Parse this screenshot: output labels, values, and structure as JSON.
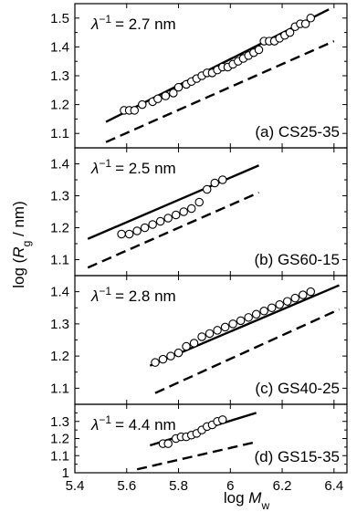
{
  "chart_data": {
    "type": "scatter",
    "layout": "four vertically stacked panels sharing the x axis",
    "xlabel": {
      "main": "log ",
      "var": "M",
      "sub": "w"
    },
    "ylabel": {
      "pre": "log (",
      "var": "R",
      "sub": "g",
      "post": " / nm)"
    },
    "xlim": [
      5.4,
      6.45
    ],
    "xticks": [
      5.4,
      5.6,
      5.8,
      6,
      6.2,
      6.4
    ],
    "xtick_labels": [
      "5.4",
      "5.6",
      "5.8",
      "6",
      "6.2",
      "6.4"
    ],
    "panels": [
      {
        "name": "(a) CS25-35",
        "lambda_label": "= 2.7 nm",
        "ylim": [
          1.05,
          1.55
        ],
        "yticks": [
          1.1,
          1.2,
          1.3,
          1.4,
          1.5
        ],
        "ytick_labels": [
          "1.1",
          "1.2",
          "1.3",
          "1.4",
          "1.5"
        ],
        "points": {
          "x": [
            5.59,
            5.61,
            5.63,
            5.66,
            5.7,
            5.72,
            5.75,
            5.78,
            5.8,
            5.83,
            5.85,
            5.87,
            5.89,
            5.91,
            5.93,
            5.95,
            5.97,
            5.99,
            6.01,
            6.03,
            6.05,
            6.07,
            6.09,
            6.11,
            6.13,
            6.15,
            6.17,
            6.19,
            6.21,
            6.23,
            6.25,
            6.27,
            6.29,
            6.31
          ],
          "y": [
            1.18,
            1.18,
            1.18,
            1.2,
            1.21,
            1.22,
            1.23,
            1.24,
            1.26,
            1.27,
            1.28,
            1.29,
            1.3,
            1.31,
            1.31,
            1.32,
            1.33,
            1.33,
            1.34,
            1.35,
            1.36,
            1.37,
            1.38,
            1.39,
            1.42,
            1.42,
            1.42,
            1.43,
            1.44,
            1.45,
            1.47,
            1.48,
            1.48,
            1.5
          ]
        },
        "fit_line": {
          "x": [
            5.52,
            6.38
          ],
          "y": [
            1.14,
            1.53
          ]
        },
        "reference_line": {
          "x": [
            5.52,
            6.4
          ],
          "y": [
            1.07,
            1.42
          ]
        }
      },
      {
        "name": "(b) GS60-15",
        "lambda_label": "= 2.5 nm",
        "ylim": [
          1.05,
          1.45
        ],
        "yticks": [
          1.1,
          1.2,
          1.3,
          1.4
        ],
        "ytick_labels": [
          "1.1",
          "1.2",
          "1.3",
          "1.4"
        ],
        "points": {
          "x": [
            5.58,
            5.61,
            5.64,
            5.67,
            5.7,
            5.73,
            5.76,
            5.79,
            5.82,
            5.85,
            5.88,
            5.91,
            5.94,
            5.97
          ],
          "y": [
            1.18,
            1.18,
            1.19,
            1.2,
            1.21,
            1.22,
            1.23,
            1.24,
            1.25,
            1.26,
            1.28,
            1.32,
            1.34,
            1.35
          ]
        },
        "fit_line": {
          "x": [
            5.45,
            6.11
          ],
          "y": [
            1.165,
            1.395
          ]
        },
        "reference_line": {
          "x": [
            5.45,
            6.11
          ],
          "y": [
            1.075,
            1.31
          ]
        }
      },
      {
        "name": "(c) GS40-25",
        "lambda_label": "= 2.8 nm",
        "ylim": [
          1.05,
          1.45
        ],
        "yticks": [
          1.1,
          1.2,
          1.3,
          1.4
        ],
        "ytick_labels": [
          "1.1",
          "1.2",
          "1.3",
          "1.4"
        ],
        "points": {
          "x": [
            5.71,
            5.74,
            5.77,
            5.8,
            5.83,
            5.86,
            5.89,
            5.92,
            5.95,
            5.98,
            6.01,
            6.04,
            6.07,
            6.1,
            6.13,
            6.16,
            6.19,
            6.22,
            6.25,
            6.28,
            6.31
          ],
          "y": [
            1.18,
            1.19,
            1.2,
            1.21,
            1.23,
            1.24,
            1.26,
            1.27,
            1.28,
            1.29,
            1.3,
            1.31,
            1.32,
            1.33,
            1.34,
            1.35,
            1.36,
            1.37,
            1.38,
            1.39,
            1.4
          ]
        },
        "fit_line": {
          "x": [
            5.69,
            6.42
          ],
          "y": [
            1.17,
            1.42
          ]
        },
        "reference_line": {
          "x": [
            5.71,
            6.42
          ],
          "y": [
            1.085,
            1.345
          ]
        }
      },
      {
        "name": "(d) GS15-35",
        "lambda_label": "= 4.4 nm",
        "ylim": [
          1.0,
          1.4
        ],
        "yticks": [
          1.0,
          1.1,
          1.2,
          1.3
        ],
        "ytick_labels": [
          "1",
          "1.1",
          "1.2",
          "1.3"
        ],
        "points": {
          "x": [
            5.74,
            5.76,
            5.79,
            5.81,
            5.83,
            5.85,
            5.87,
            5.89,
            5.91,
            5.93,
            5.95,
            5.97
          ],
          "y": [
            1.17,
            1.17,
            1.2,
            1.21,
            1.21,
            1.22,
            1.23,
            1.25,
            1.27,
            1.28,
            1.3,
            1.31
          ]
        },
        "fit_line": {
          "x": [
            5.69,
            6.1
          ],
          "y": [
            1.16,
            1.35
          ]
        },
        "reference_line": {
          "x": [
            5.64,
            6.1
          ],
          "y": [
            1.02,
            1.18
          ]
        }
      }
    ]
  }
}
